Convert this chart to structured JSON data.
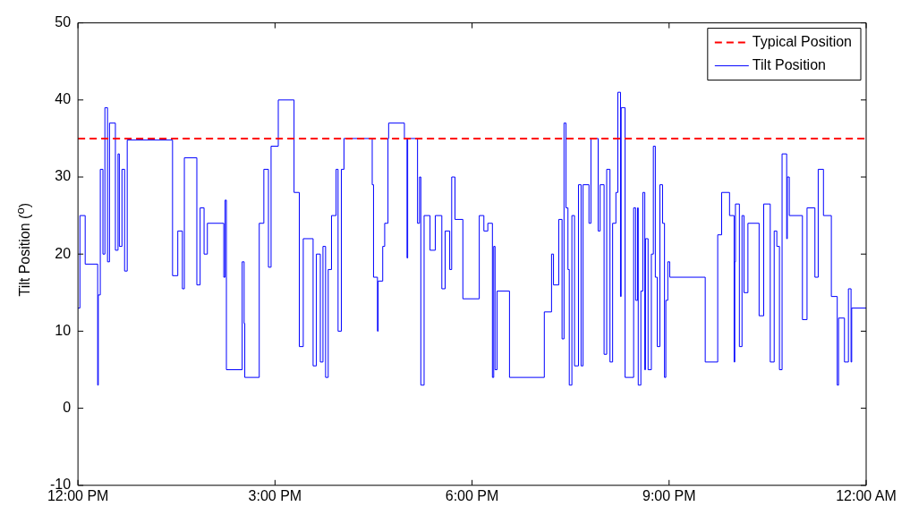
{
  "chart_data": {
    "type": "step",
    "ylabel": "Tilt Position ($^{o}$)",
    "xlim": [
      12,
      24
    ],
    "xticks": [
      {
        "value": 12,
        "label": "12:00 PM"
      },
      {
        "value": 15,
        "label": "3:00 PM"
      },
      {
        "value": 18,
        "label": "6:00 PM"
      },
      {
        "value": 21,
        "label": "9:00 PM"
      },
      {
        "value": 24,
        "label": "12:00 AM"
      }
    ],
    "ylim": [
      -10,
      50
    ],
    "yticks": [
      -10,
      0,
      10,
      20,
      30,
      40,
      50
    ],
    "grid": false,
    "legend": "top right",
    "ref_lines": [
      {
        "axis": "y",
        "value": 35,
        "label": "Typical Position",
        "color": "#ff0000",
        "line_style": "dashed"
      }
    ],
    "x": [
      12.0,
      12.03,
      12.11,
      12.3,
      12.31,
      12.34,
      12.38,
      12.41,
      12.45,
      12.48,
      12.57,
      12.61,
      12.63,
      12.67,
      12.71,
      12.75,
      13.44,
      13.52,
      13.59,
      13.62,
      13.81,
      13.86,
      13.92,
      13.97,
      14.22,
      14.24,
      14.26,
      14.5,
      14.53,
      14.54,
      14.76,
      14.83,
      14.9,
      14.94,
      15.05,
      15.29,
      15.37,
      15.43,
      15.58,
      15.63,
      15.69,
      15.73,
      15.77,
      15.81,
      15.86,
      15.93,
      15.96,
      16.01,
      16.05,
      16.48,
      16.5,
      16.56,
      16.57,
      16.64,
      16.67,
      16.72,
      16.73,
      16.97,
      17.01,
      17.02,
      17.17,
      17.2,
      17.22,
      17.27,
      17.36,
      17.44,
      17.54,
      17.59,
      17.66,
      17.69,
      17.74,
      17.86,
      18.11,
      18.18,
      18.24,
      18.31,
      18.33,
      18.35,
      18.38,
      18.57,
      19.1,
      19.21,
      19.24,
      19.32,
      19.37,
      19.4,
      19.43,
      19.46,
      19.48,
      19.52,
      19.56,
      19.62,
      19.66,
      19.69,
      19.78,
      19.81,
      19.92,
      19.95,
      20.01,
      20.05,
      20.1,
      20.14,
      20.19,
      20.22,
      20.26,
      20.27,
      20.33,
      20.46,
      20.49,
      20.52,
      20.53,
      20.57,
      20.6,
      20.63,
      20.64,
      20.68,
      20.73,
      20.76,
      20.79,
      20.82,
      20.86,
      20.9,
      20.93,
      20.95,
      20.98,
      21.01,
      21.55,
      21.74,
      21.8,
      21.92,
      21.99,
      22.0,
      22.01,
      22.07,
      22.11,
      22.14,
      22.2,
      22.37,
      22.44,
      22.54,
      22.6,
      22.64,
      22.68,
      22.72,
      22.79,
      22.8,
      22.83,
      23.03,
      23.1,
      23.22,
      23.27,
      23.35,
      23.47,
      23.56,
      23.58,
      23.67,
      23.73,
      23.77,
      23.78,
      24.0
    ],
    "series": [
      {
        "name": "Tilt Position",
        "color": "#0000ff",
        "values": [
          13,
          25,
          18.7,
          3,
          14.7,
          31,
          20,
          39,
          19,
          37,
          20.5,
          33,
          21,
          31,
          17.8,
          34.8,
          17.2,
          23,
          15.5,
          32.5,
          16,
          26,
          20,
          24,
          17,
          27,
          5,
          19,
          11,
          4,
          24,
          31,
          18.3,
          34,
          40,
          28,
          8,
          22,
          5.5,
          20,
          6,
          21,
          4,
          18,
          25,
          31,
          10,
          31,
          35,
          29,
          17,
          10,
          16.5,
          21,
          24,
          35,
          37,
          35,
          19.5,
          35,
          24,
          30,
          3,
          25,
          20.5,
          25,
          15.5,
          23,
          18,
          30,
          24.5,
          14.2,
          25,
          23,
          24,
          4,
          21,
          5,
          15.2,
          4,
          12.5,
          20,
          16,
          24.5,
          9,
          37,
          26,
          18,
          3,
          25,
          5.5,
          29,
          5.5,
          29,
          24,
          35,
          23,
          29,
          7,
          31,
          6,
          24,
          28,
          41,
          14.5,
          39,
          4,
          26,
          14,
          26,
          3,
          15.2,
          28,
          5,
          22,
          5,
          20,
          34,
          17,
          8,
          29,
          24,
          4,
          14,
          19,
          17,
          6,
          22.5,
          28,
          25,
          6,
          19,
          26.5,
          8,
          25,
          15,
          24,
          12,
          26.5,
          6,
          23,
          21,
          5,
          33,
          22,
          30,
          25,
          11.5,
          26,
          17,
          31,
          25,
          14.5,
          3,
          11.7,
          6,
          15.5,
          6,
          13,
          13
        ]
      }
    ]
  }
}
